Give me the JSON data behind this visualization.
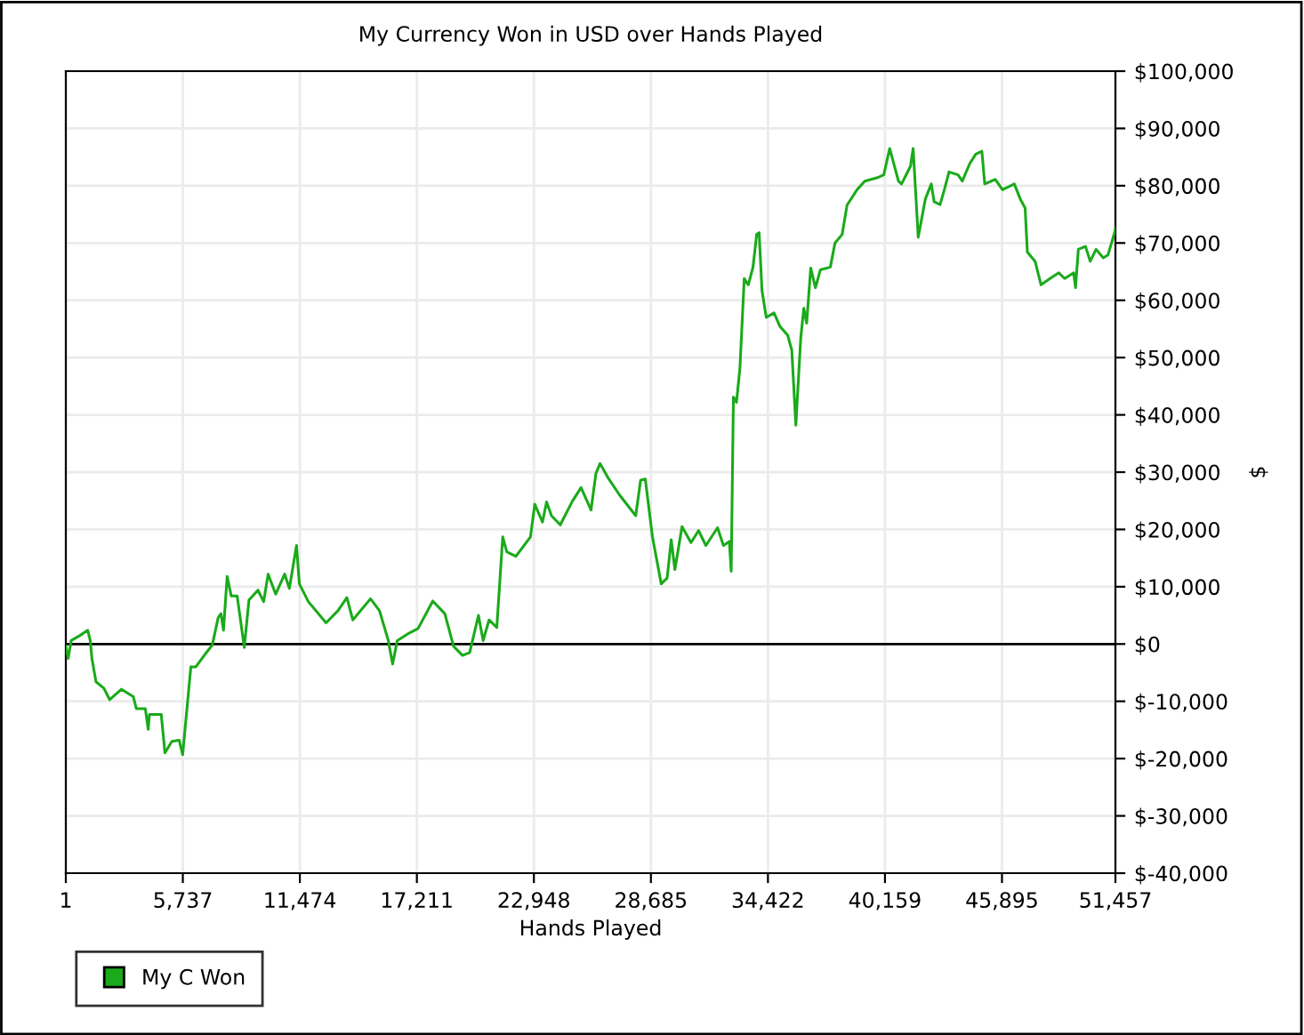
{
  "chart_data": {
    "type": "line",
    "title": "My Currency Won in USD over Hands Played",
    "xlabel": "Hands Played",
    "ylabel": "$",
    "xlim": [
      1,
      51457
    ],
    "xticks": [
      1,
      {
        "value": 5737,
        "label": "5,737"
      },
      {
        "value": 11474,
        "label": "11,474"
      },
      {
        "value": 17211,
        "label": "17,211"
      },
      {
        "value": 22948,
        "label": "22,948"
      },
      {
        "value": 28685,
        "label": "28,685"
      },
      {
        "value": 34422,
        "label": "34,422"
      },
      {
        "value": 40159,
        "label": "40,159"
      },
      {
        "value": 45895,
        "label": "45,895"
      },
      {
        "value": 51457,
        "label": "51,457"
      }
    ],
    "ylim": [
      -40000,
      100000
    ],
    "yticks": [
      {
        "value": -40000,
        "label": "$-40,000"
      },
      {
        "value": -30000,
        "label": "$-30,000"
      },
      {
        "value": -20000,
        "label": "$-20,000"
      },
      {
        "value": -10000,
        "label": "$-10,000"
      },
      {
        "value": 0,
        "label": "$0"
      },
      {
        "value": 10000,
        "label": "$10,000"
      },
      {
        "value": 20000,
        "label": "$20,000"
      },
      {
        "value": 30000,
        "label": "$30,000"
      },
      {
        "value": 40000,
        "label": "$40,000"
      },
      {
        "value": 50000,
        "label": "$50,000"
      },
      {
        "value": 60000,
        "label": "$60,000"
      },
      {
        "value": 70000,
        "label": "$70,000"
      },
      {
        "value": 80000,
        "label": "$80,000"
      },
      {
        "value": 90000,
        "label": "$90,000"
      },
      {
        "value": 100000,
        "label": "$100,000"
      }
    ],
    "grid": true,
    "legend": "bottom left",
    "marker": "none",
    "line_style": "solid",
    "ref_lines": [
      {
        "axis": "y",
        "value": 0,
        "color": "#000000"
      }
    ],
    "series": [
      {
        "name": "My C Won",
        "color": "#1aaa1a",
        "x": [
          1,
          115,
          263,
          700,
          1075,
          1200,
          1280,
          1480,
          1860,
          2150,
          2730,
          3310,
          3460,
          3900,
          4040,
          4100,
          4680,
          4860,
          5200,
          5560,
          5730,
          6130,
          6370,
          6890,
          7180,
          7470,
          7610,
          7730,
          7910,
          8110,
          8400,
          8750,
          8980,
          9420,
          9700,
          9920,
          10290,
          10730,
          10960,
          11310,
          11450,
          11890,
          12760,
          13340,
          13780,
          14070,
          14940,
          15380,
          15810,
          16020,
          16250,
          16830,
          17270,
          17990,
          18580,
          19010,
          19450,
          19800,
          20230,
          20460,
          20750,
          21130,
          21420,
          21620,
          22060,
          22780,
          22990,
          23370,
          23570,
          23810,
          24240,
          24830,
          25260,
          25750,
          25990,
          26190,
          26570,
          27150,
          27940,
          28180,
          28410,
          28760,
          29190,
          29480,
          29680,
          29860,
          30210,
          30650,
          31020,
          31380,
          31950,
          32240,
          32530,
          32620,
          32730,
          32880,
          33050,
          33260,
          33460,
          33690,
          33870,
          33990,
          34130,
          34340,
          34720,
          35000,
          35390,
          35590,
          35790,
          36030,
          36180,
          36320,
          36520,
          36750,
          36990,
          37480,
          37710,
          38060,
          38300,
          38790,
          39170,
          39790,
          40100,
          40390,
          40820,
          40970,
          41410,
          41540,
          41790,
          42140,
          42430,
          42570,
          42860,
          43070,
          43300,
          43740,
          43950,
          44320,
          44610,
          44910,
          45050,
          45570,
          45920,
          46500,
          46790,
          47030,
          47140,
          47520,
          47810,
          48250,
          48680,
          48970,
          49410,
          49500,
          49640,
          49990,
          50220,
          50510,
          50860,
          51090,
          51440,
          51457
        ],
        "values": [
          -400,
          -2500,
          600,
          1500,
          2400,
          600,
          -2500,
          -6600,
          -7700,
          -9700,
          -7900,
          -9200,
          -11300,
          -11300,
          -14900,
          -12300,
          -12300,
          -19000,
          -17000,
          -16800,
          -19300,
          -4000,
          -4000,
          -1500,
          -200,
          4600,
          5300,
          2400,
          11800,
          8400,
          8400,
          -600,
          7700,
          9400,
          7400,
          12200,
          8700,
          12200,
          9700,
          17200,
          10500,
          7400,
          3700,
          5800,
          8100,
          4200,
          7900,
          5800,
          600,
          -3500,
          600,
          1900,
          2700,
          7500,
          5300,
          -400,
          -2000,
          -1500,
          5000,
          600,
          4200,
          2900,
          18700,
          16100,
          15300,
          18700,
          24400,
          21300,
          24800,
          22400,
          20800,
          24900,
          27300,
          23400,
          29800,
          31500,
          29100,
          26000,
          22400,
          28600,
          28800,
          18700,
          10500,
          11500,
          18200,
          13000,
          20500,
          17700,
          19800,
          17200,
          20300,
          17200,
          17900,
          12700,
          43100,
          42200,
          48200,
          63800,
          62700,
          65800,
          71500,
          71800,
          61700,
          57000,
          57800,
          55500,
          53900,
          51300,
          38200,
          53400,
          58600,
          56000,
          65600,
          62200,
          65300,
          65800,
          70000,
          71500,
          76600,
          79300,
          80800,
          81400,
          81900,
          86500,
          80800,
          80300,
          83400,
          86500,
          71000,
          77700,
          80300,
          77200,
          76700,
          79300,
          82400,
          81900,
          80800,
          83900,
          85500,
          86000,
          80300,
          81100,
          79300,
          80300,
          77700,
          76100,
          68400,
          66800,
          62700,
          63800,
          64800,
          63800,
          64800,
          62200,
          68900,
          69400,
          66800,
          68900,
          67400,
          67900,
          72100,
          72600
        ]
      }
    ]
  }
}
